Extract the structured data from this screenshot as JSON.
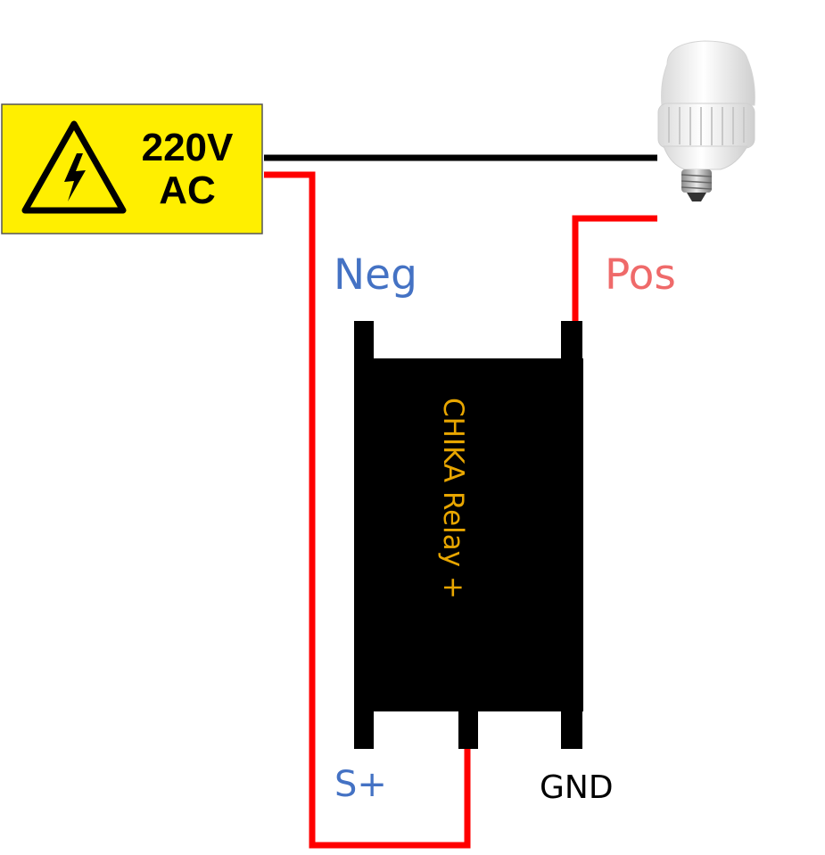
{
  "warning_sign": {
    "voltage": "220V",
    "type": "AC",
    "icon": "high-voltage-icon",
    "bg_color": "#FFEF00"
  },
  "labels": {
    "neg": "Neg",
    "pos": "Pos",
    "s_plus": "S+",
    "gnd": "GND"
  },
  "relay": {
    "label": "CHIKA Relay +",
    "body_color": "#000000",
    "label_color": "#E8A600"
  },
  "bulb": {
    "icon": "light-bulb-icon"
  },
  "colors": {
    "live_wire": "#FF0000",
    "neutral_wire": "#000000",
    "neg_label": "#4472C4",
    "pos_label": "#EF6A6A",
    "s_plus_label": "#4472C4",
    "gnd_label": "#000000"
  }
}
